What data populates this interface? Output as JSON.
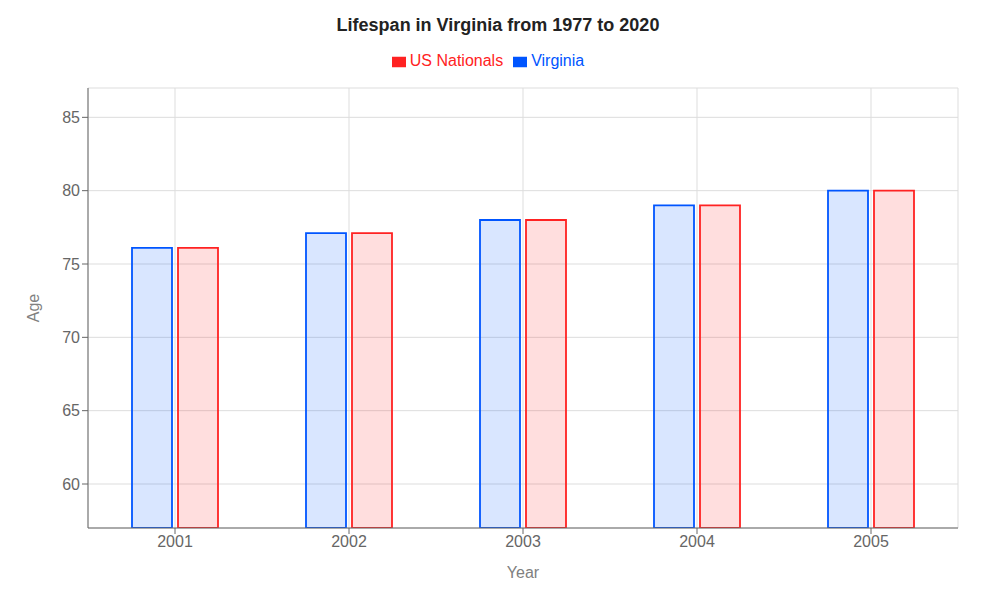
{
  "chart_data": {
    "type": "bar",
    "title": "Lifespan in Virginia from 1977 to 2020",
    "xlabel": "Year",
    "ylabel": "Age",
    "categories": [
      "2001",
      "2002",
      "2003",
      "2004",
      "2005"
    ],
    "series": [
      {
        "name": "Virginia",
        "color": "#0055ff",
        "values": [
          76.1,
          77.1,
          78.0,
          79.0,
          80.0
        ]
      },
      {
        "name": "US Nationals",
        "color": "#ff2222",
        "values": [
          76.1,
          77.1,
          78.0,
          79.0,
          80.0
        ]
      }
    ],
    "ylim": [
      57,
      87
    ],
    "yticks": [
      60,
      65,
      70,
      75,
      80,
      85
    ],
    "grid": true,
    "legend": "top"
  }
}
